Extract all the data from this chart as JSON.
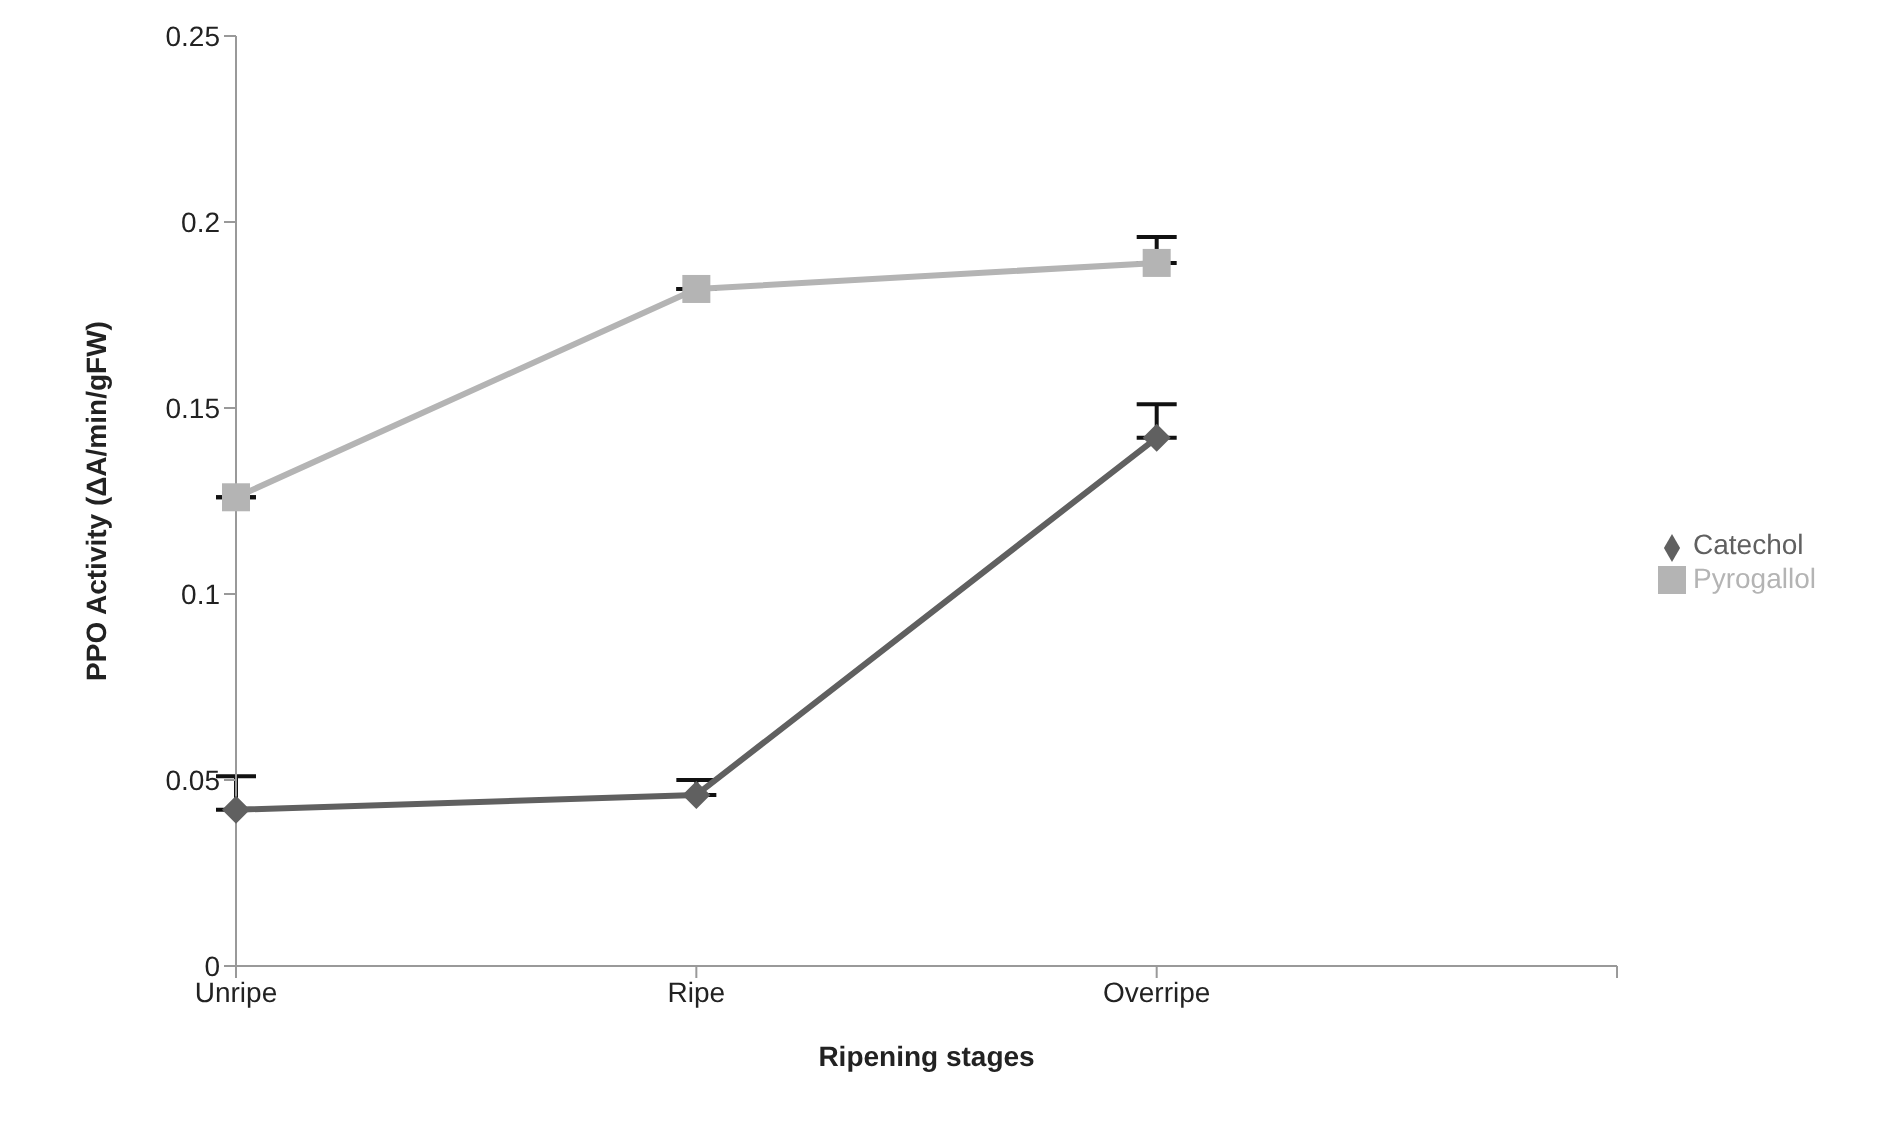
{
  "chart_data": {
    "type": "line",
    "xlabel": "Ripening stages",
    "ylabel": "PPO Activity (ΔA/min/gFW)",
    "categories": [
      "Unripe",
      "Ripe",
      "Overripe",
      null
    ],
    "series": [
      {
        "name": "Catechol",
        "color": "#606060",
        "marker": "diamond",
        "values": [
          0.042,
          0.046,
          0.142,
          null
        ],
        "errors": [
          0.009,
          0.004,
          0.009,
          null
        ]
      },
      {
        "name": "Pyrogallol",
        "color": "#b4b4b4",
        "marker": "square",
        "values": [
          0.126,
          0.182,
          0.189,
          null
        ],
        "errors": [
          null,
          null,
          0.007,
          null
        ]
      }
    ],
    "ylim": [
      0,
      0.25
    ],
    "yticks": [
      0,
      0.05,
      0.1,
      0.15,
      0.2,
      0.25
    ],
    "grid": false,
    "legend": "right"
  }
}
